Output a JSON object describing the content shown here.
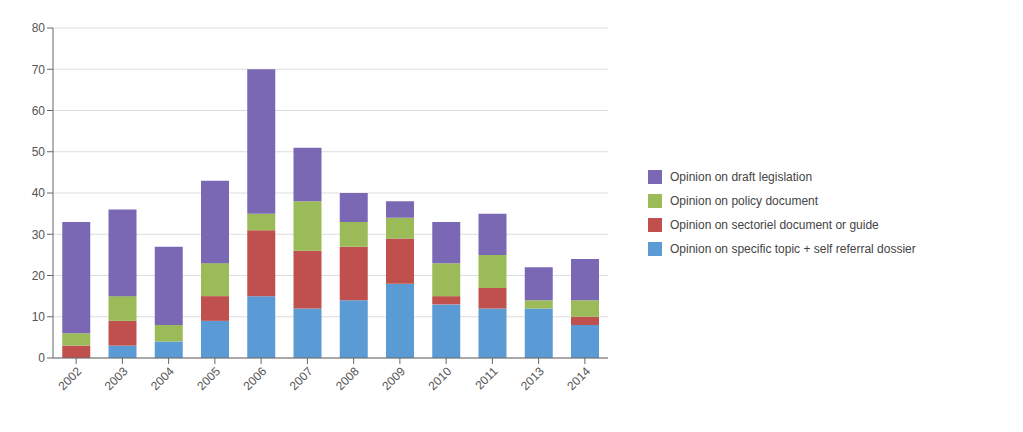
{
  "chart_data": {
    "type": "bar",
    "stacked": true,
    "grid": true,
    "legend": "right",
    "categories": [
      "2002",
      "2003",
      "2004",
      "2005",
      "2006",
      "2007",
      "2008",
      "2009",
      "2010",
      "2011",
      "2013",
      "2014"
    ],
    "series": [
      {
        "name": "Opinion on specific topic + self referral dossier",
        "color": "#5b9bd5",
        "values": [
          0,
          3,
          4,
          9,
          15,
          12,
          14,
          18,
          13,
          12,
          12,
          8
        ]
      },
      {
        "name": "Opinion on sectoriel document or guide",
        "color": "#c0504d",
        "values": [
          3,
          6,
          0,
          6,
          16,
          14,
          13,
          11,
          2,
          5,
          0,
          2
        ]
      },
      {
        "name": "Opinion on policy document",
        "color": "#9bbb59",
        "values": [
          3,
          6,
          4,
          8,
          4,
          12,
          6,
          5,
          8,
          8,
          2,
          4
        ]
      },
      {
        "name": "Opinion on draft legislation",
        "color": "#7b68b5",
        "values": [
          27,
          21,
          19,
          20,
          35,
          13,
          7,
          4,
          10,
          10,
          8,
          10
        ]
      }
    ],
    "ylim": [
      0,
      80
    ],
    "yticks": [
      0,
      10,
      20,
      30,
      40,
      50,
      60,
      70,
      80
    ]
  }
}
